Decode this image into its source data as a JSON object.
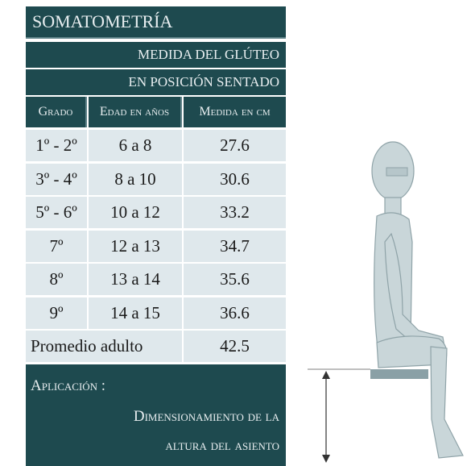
{
  "header": {
    "title": "SOMATOMETRÍA",
    "subtitle_lines": [
      "MEDIDA DEL GLÚTEO",
      "EN POSICIÓN SENTADO"
    ]
  },
  "table": {
    "columns": [
      "Grado",
      "Edad en años",
      "Medida en cm"
    ],
    "rows": [
      [
        "1º - 2º",
        "6 a 8",
        27.6
      ],
      [
        "3º - 4º",
        "8 a 10",
        30.6
      ],
      [
        "5º - 6º",
        "10 a 12",
        33.2
      ],
      [
        "7º",
        "12 a 13",
        34.7
      ],
      [
        "8º",
        "13 a 14",
        35.6
      ],
      [
        "9º",
        "14 a 15",
        36.6
      ]
    ],
    "adult": {
      "label": "Promedio adulto",
      "value": 42.5
    }
  },
  "application": {
    "label": "Aplicación :",
    "lines": [
      "Dimensionamiento de la",
      "altura del asiento"
    ]
  }
}
